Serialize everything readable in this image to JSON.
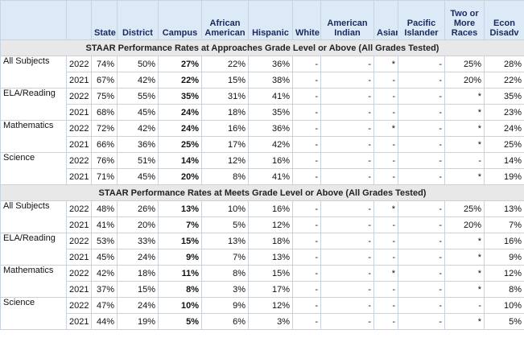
{
  "table": {
    "headers": [
      "State",
      "District",
      "Campus",
      "African American",
      "Hispanic",
      "White",
      "American Indian",
      "Asian",
      "Pacific Islander",
      "Two or More Races",
      "Econ Disadv"
    ],
    "sections": [
      {
        "title": "STAAR Performance Rates at Approaches Grade Level or Above (All Grades Tested)",
        "groups": [
          {
            "subject": "All Subjects",
            "rows": [
              {
                "year": "2022",
                "cells": [
                  "74%",
                  "50%",
                  "27%",
                  "22%",
                  "36%",
                  "-",
                  "-",
                  "*",
                  "-",
                  "25%",
                  "28%"
                ]
              },
              {
                "year": "2021",
                "cells": [
                  "67%",
                  "42%",
                  "22%",
                  "15%",
                  "38%",
                  "-",
                  "-",
                  "-",
                  "-",
                  "20%",
                  "22%"
                ]
              }
            ]
          },
          {
            "subject": "ELA/Reading",
            "rows": [
              {
                "year": "2022",
                "cells": [
                  "75%",
                  "55%",
                  "35%",
                  "31%",
                  "41%",
                  "-",
                  "-",
                  "-",
                  "-",
                  "*",
                  "35%"
                ]
              },
              {
                "year": "2021",
                "cells": [
                  "68%",
                  "45%",
                  "24%",
                  "18%",
                  "35%",
                  "-",
                  "-",
                  "-",
                  "-",
                  "*",
                  "23%"
                ]
              }
            ]
          },
          {
            "subject": "Mathematics",
            "rows": [
              {
                "year": "2022",
                "cells": [
                  "72%",
                  "42%",
                  "24%",
                  "16%",
                  "36%",
                  "-",
                  "-",
                  "*",
                  "-",
                  "*",
                  "24%"
                ]
              },
              {
                "year": "2021",
                "cells": [
                  "66%",
                  "36%",
                  "25%",
                  "17%",
                  "42%",
                  "-",
                  "-",
                  "-",
                  "-",
                  "*",
                  "25%"
                ]
              }
            ]
          },
          {
            "subject": "Science",
            "rows": [
              {
                "year": "2022",
                "cells": [
                  "76%",
                  "51%",
                  "14%",
                  "12%",
                  "16%",
                  "-",
                  "-",
                  "-",
                  "-",
                  "-",
                  "14%"
                ]
              },
              {
                "year": "2021",
                "cells": [
                  "71%",
                  "45%",
                  "20%",
                  "8%",
                  "41%",
                  "-",
                  "-",
                  "-",
                  "-",
                  "*",
                  "19%"
                ]
              }
            ]
          }
        ]
      },
      {
        "title": "STAAR Performance Rates at Meets Grade Level or Above (All Grades Tested)",
        "groups": [
          {
            "subject": "All Subjects",
            "rows": [
              {
                "year": "2022",
                "cells": [
                  "48%",
                  "26%",
                  "13%",
                  "10%",
                  "16%",
                  "-",
                  "-",
                  "*",
                  "-",
                  "25%",
                  "13%"
                ]
              },
              {
                "year": "2021",
                "cells": [
                  "41%",
                  "20%",
                  "7%",
                  "5%",
                  "12%",
                  "-",
                  "-",
                  "-",
                  "-",
                  "20%",
                  "7%"
                ]
              }
            ]
          },
          {
            "subject": "ELA/Reading",
            "rows": [
              {
                "year": "2022",
                "cells": [
                  "53%",
                  "33%",
                  "15%",
                  "13%",
                  "18%",
                  "-",
                  "-",
                  "-",
                  "-",
                  "*",
                  "16%"
                ]
              },
              {
                "year": "2021",
                "cells": [
                  "45%",
                  "24%",
                  "9%",
                  "7%",
                  "13%",
                  "-",
                  "-",
                  "-",
                  "-",
                  "*",
                  "9%"
                ]
              }
            ]
          },
          {
            "subject": "Mathematics",
            "rows": [
              {
                "year": "2022",
                "cells": [
                  "42%",
                  "18%",
                  "11%",
                  "8%",
                  "15%",
                  "-",
                  "-",
                  "*",
                  "-",
                  "*",
                  "12%"
                ]
              },
              {
                "year": "2021",
                "cells": [
                  "37%",
                  "15%",
                  "8%",
                  "3%",
                  "17%",
                  "-",
                  "-",
                  "-",
                  "-",
                  "*",
                  "8%"
                ]
              }
            ]
          },
          {
            "subject": "Science",
            "rows": [
              {
                "year": "2022",
                "cells": [
                  "47%",
                  "24%",
                  "10%",
                  "9%",
                  "12%",
                  "-",
                  "-",
                  "-",
                  "-",
                  "-",
                  "10%"
                ]
              },
              {
                "year": "2021",
                "cells": [
                  "44%",
                  "19%",
                  "5%",
                  "6%",
                  "3%",
                  "-",
                  "-",
                  "-",
                  "-",
                  "*",
                  "5%"
                ]
              }
            ]
          }
        ]
      }
    ]
  }
}
